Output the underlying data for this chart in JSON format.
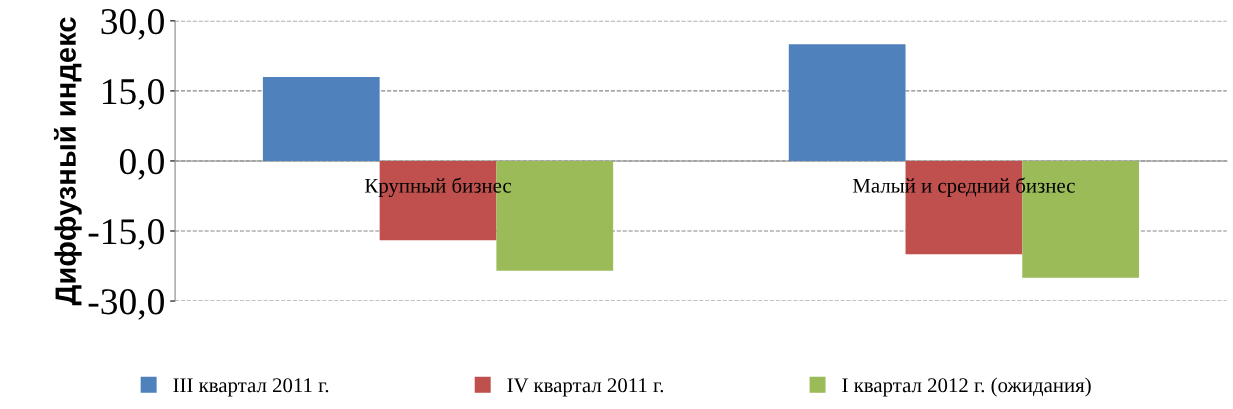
{
  "chart_data": {
    "type": "bar",
    "ylabel": "Диффузный индекс",
    "categories": [
      "Крупный бизнес",
      "Малый и средний бизнес"
    ],
    "series": [
      {
        "name": "III квартал 2011 г.",
        "color": "#4f81bd",
        "values": [
          18,
          25
        ]
      },
      {
        "name": "IV квартал 2011 г.",
        "color": "#c0504d",
        "values": [
          -17,
          -20
        ]
      },
      {
        "name": "I квартал 2012 г. (ожидания)",
        "color": "#9bbb59",
        "values": [
          -23.5,
          -25
        ]
      }
    ],
    "ylim": [
      -30,
      30
    ],
    "yticks": [
      {
        "value": -30,
        "label": "-30,0"
      },
      {
        "value": -15,
        "label": "-15,0"
      },
      {
        "value": 0,
        "label": "0,0"
      },
      {
        "value": 15,
        "label": "15,0"
      },
      {
        "value": 30,
        "label": "30,0"
      }
    ],
    "grid": "y",
    "legend": "bottom"
  }
}
